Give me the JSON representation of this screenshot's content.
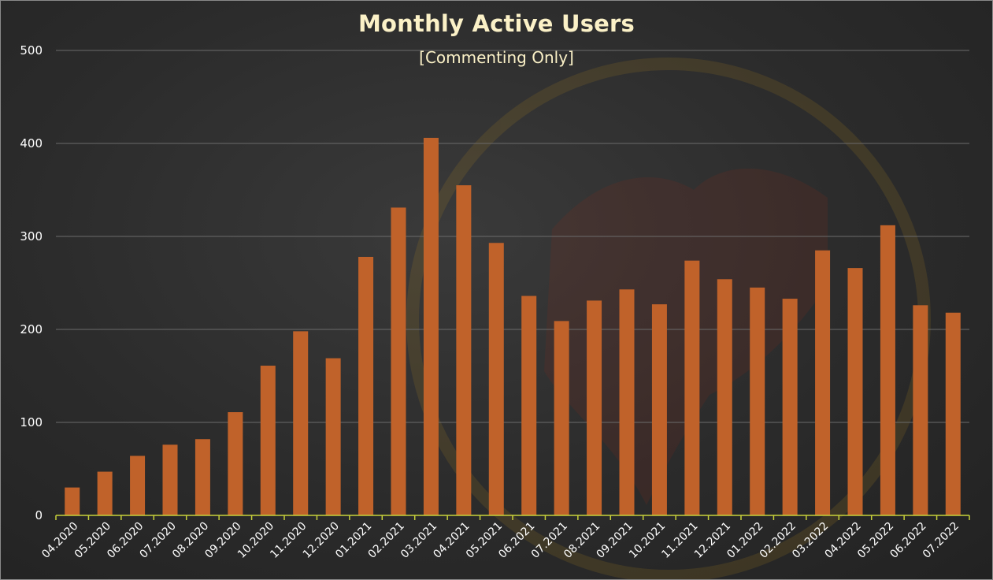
{
  "chart_data": {
    "type": "bar",
    "title": "Monthly Active Users",
    "subtitle": "[Commenting Only]",
    "xlabel": "",
    "ylabel": "",
    "ylim": [
      0,
      500
    ],
    "yticks": [
      0,
      100,
      200,
      300,
      400,
      500
    ],
    "grid": true,
    "categories": [
      "04.2020",
      "05.2020",
      "06.2020",
      "07.2020",
      "08.2020",
      "09.2020",
      "10.2020",
      "11.2020",
      "12.2020",
      "01.2021",
      "02.2021",
      "03.2021",
      "04.2021",
      "05.2021",
      "06.2021",
      "07.2021",
      "08.2021",
      "09.2021",
      "10.2021",
      "11.2021",
      "12.2021",
      "01.2022",
      "02.2022",
      "03.2022",
      "04.2022",
      "05.2022",
      "06.2022",
      "07.2022"
    ],
    "values": [
      30,
      47,
      64,
      76,
      82,
      111,
      161,
      198,
      169,
      278,
      331,
      406,
      355,
      293,
      236,
      209,
      231,
      243,
      227,
      274,
      254,
      245,
      233,
      285,
      266,
      312,
      226,
      218
    ]
  },
  "colors": {
    "bar": "#c0622a",
    "axis": "#c7d13a",
    "grid": "#6b6b6b",
    "text": "#ffffff",
    "title": "#fbf1c7"
  }
}
